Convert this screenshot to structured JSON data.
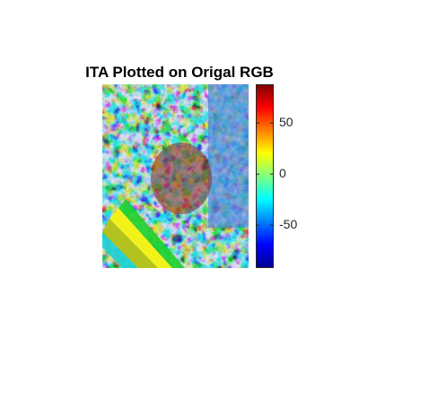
{
  "chart_data": {
    "type": "heatmap",
    "title": "ITA Plotted on Origal RGB",
    "xlabel": "",
    "ylabel": "",
    "colormap": "jet",
    "colorbar": {
      "clim": [
        -92,
        88
      ],
      "ticks": [
        {
          "value": 50,
          "label": "50"
        },
        {
          "value": 0,
          "label": "0"
        },
        {
          "value": -50,
          "label": "-50"
        }
      ]
    },
    "grid": false,
    "legend": "none"
  }
}
